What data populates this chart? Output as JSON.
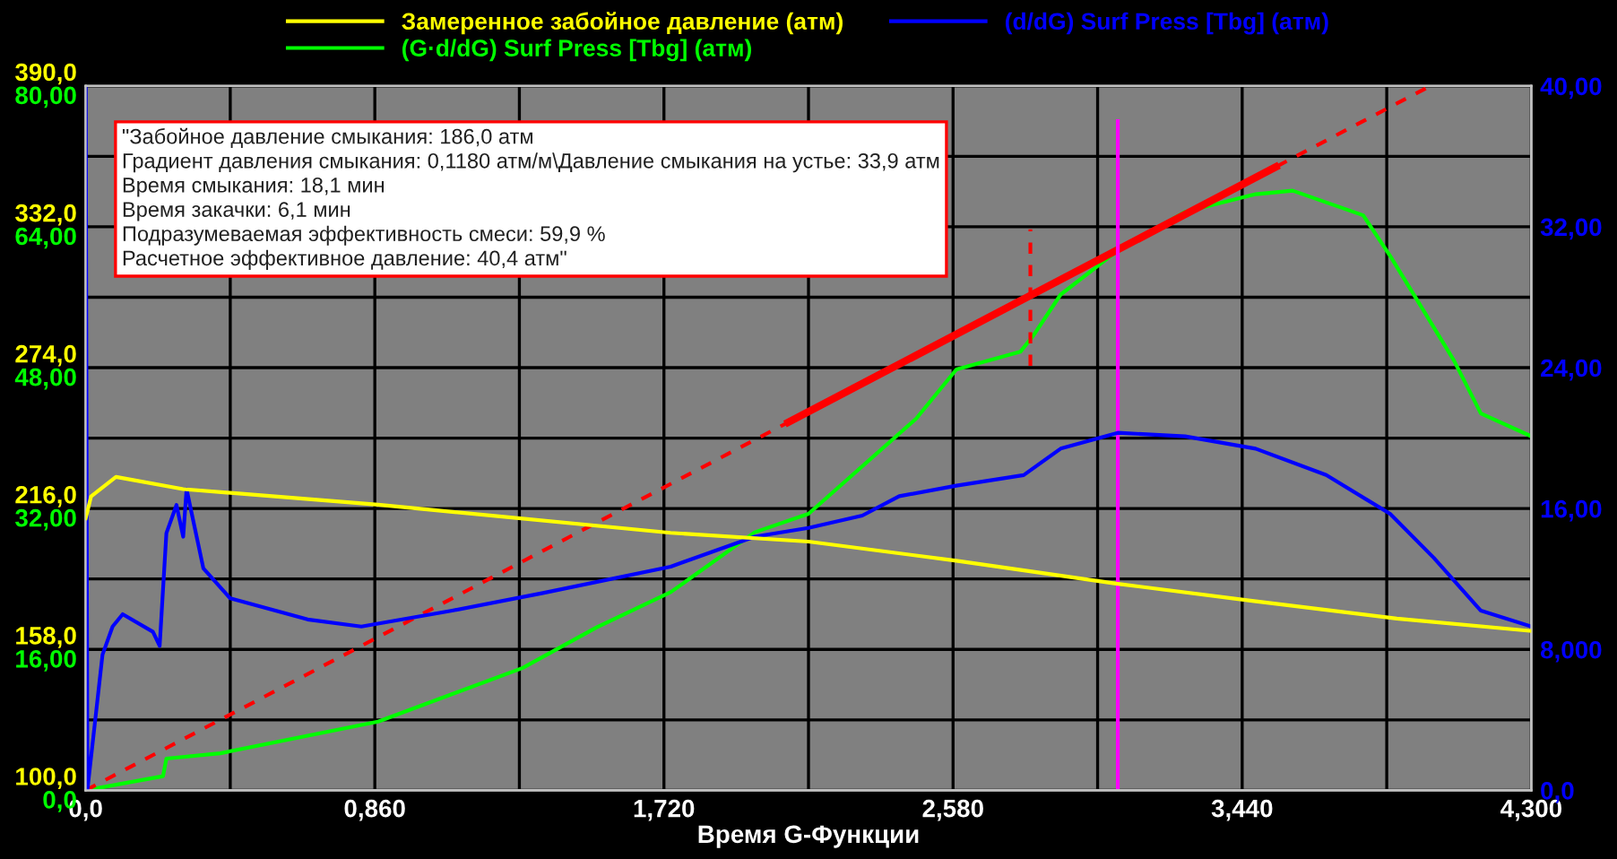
{
  "chart_data": {
    "type": "line",
    "xlabel": "Время G-Функции",
    "legend": "top",
    "grid": true,
    "marker": "none",
    "annotations": [
      "\"Забойное давление смыкания: 186,0 атм\nГрадиент давления смыкания: 0,1180 атм/м\\Давление смыкания на устье: 33,9 атм\nВремя смыкания: 18,1 мин\nВремя закачки: 6,1 мин\nПодразумеваемая эффективность смеси: 59,9 %\nРасчетное эффективное давление: 40,4 атм\""
    ],
    "xlim": [
      0,
      4.3
    ],
    "xticks": [
      {
        "value": 0,
        "label": "0,0"
      },
      {
        "value": 0.43,
        "label": null
      },
      {
        "value": 0.86,
        "label": "0,860"
      },
      {
        "value": 1.29,
        "label": null
      },
      {
        "value": 1.72,
        "label": "1,720"
      },
      {
        "value": 2.15,
        "label": null
      },
      {
        "value": 2.58,
        "label": "2,580"
      },
      {
        "value": 3.01,
        "label": null
      },
      {
        "value": 3.44,
        "label": "3,440"
      },
      {
        "value": 3.87,
        "label": null
      },
      {
        "value": 4.3,
        "label": "4,300"
      }
    ],
    "ylim": [
      0,
      80
    ],
    "yticks": [
      {
        "value": 0,
        "label": "0,0"
      },
      {
        "value": 8,
        "label": null
      },
      {
        "value": 16,
        "label": "16,00"
      },
      {
        "value": 24,
        "label": null
      },
      {
        "value": 32,
        "label": "32,00"
      },
      {
        "value": 40,
        "label": null
      },
      {
        "value": 48,
        "label": "48,00"
      },
      {
        "value": 56,
        "label": null
      },
      {
        "value": 64,
        "label": "64,00"
      },
      {
        "value": 72,
        "label": null
      },
      {
        "value": 80,
        "label": "80,00"
      }
    ],
    "y2lim": [
      0,
      40
    ],
    "y2ticks": [
      {
        "value": 0,
        "label": "0,0"
      },
      {
        "value": 8,
        "label": "8,000"
      },
      {
        "value": 16,
        "label": "16,00"
      },
      {
        "value": 24,
        "label": "24,00"
      },
      {
        "value": 32,
        "label": "32,00"
      },
      {
        "value": 40,
        "label": "40,00"
      }
    ],
    "y3lim": [
      100,
      390
    ],
    "y3ticks": [
      {
        "value": 100,
        "label": "100,0"
      },
      {
        "value": 158,
        "label": "158,0"
      },
      {
        "value": 216,
        "label": "216,0"
      },
      {
        "value": 274,
        "label": "274,0"
      },
      {
        "value": 332,
        "label": "332,0"
      },
      {
        "value": 390,
        "label": "390,0"
      }
    ],
    "series": [
      {
        "name": "Замеренное забойное давление (атм)",
        "color": "#ffff00",
        "axis": "y3",
        "line_style": "solid",
        "x": [
          0,
          0.016,
          0.09,
          0.29,
          0.87,
          1.74,
          2.15,
          2.59,
          3.07,
          3.47,
          3.9,
          4.3
        ],
        "values": [
          212,
          221,
          229,
          224,
          217.6,
          206,
          202.4,
          194.5,
          185,
          178,
          170.7,
          165.6
        ]
      },
      {
        "name": "(G·d/dG) Surf Press [Tbg] (атм)",
        "color": "#00ff00",
        "axis": "y",
        "line_style": "solid",
        "x": [
          0,
          0.23,
          0.24,
          0.4,
          0.87,
          1.3,
          1.52,
          1.74,
          1.99,
          2.15,
          2.47,
          2.59,
          2.78,
          2.82,
          2.9,
          3.07,
          3.27,
          3.48,
          3.59,
          3.8,
          3.88,
          3.96,
          4.07,
          4.15,
          4.3
        ],
        "values": [
          0,
          1.6,
          3.6,
          4.2,
          7.8,
          13.9,
          18.5,
          22.5,
          29.3,
          31.4,
          42.2,
          47.8,
          49.8,
          51.7,
          56.3,
          61.3,
          65.7,
          67.7,
          68.1,
          65.3,
          60.7,
          55.7,
          48.8,
          42.8,
          40.2
        ]
      },
      {
        "name": "(d/dG) Surf Press [Tbg] (атм)",
        "color": "#0000ff",
        "axis": "y2",
        "line_style": "solid",
        "x": [
          0,
          0.005,
          0.05,
          0.08,
          0.11,
          0.2,
          0.22,
          0.24,
          0.27,
          0.29,
          0.3,
          0.35,
          0.43,
          0.66,
          0.82,
          1.09,
          1.36,
          1.74,
          1.99,
          2.15,
          2.31,
          2.42,
          2.59,
          2.79,
          2.9,
          3.07,
          3.27,
          3.48,
          3.69,
          3.88,
          4.01,
          4.15,
          4.3
        ],
        "values": [
          40,
          0,
          7.7,
          9.3,
          10.0,
          9.0,
          8.2,
          14.6,
          16.2,
          14.4,
          17.1,
          12.6,
          10.9,
          9.7,
          9.3,
          10.2,
          11.2,
          12.7,
          14.4,
          14.9,
          15.6,
          16.7,
          17.3,
          17.9,
          19.4,
          20.3,
          20.1,
          19.4,
          17.9,
          15.7,
          13.2,
          10.2,
          9.3
        ]
      },
      {
        "color": "#ff0000",
        "axis": "y",
        "line_style": "dashed",
        "x": [
          0,
          4.0
        ],
        "values": [
          0,
          80
        ]
      },
      {
        "color": "#ff0000",
        "axis": "y",
        "line_style": "solid",
        "x": [
          2.09,
          3.54
        ],
        "values": [
          41.8,
          70.8
        ]
      },
      {
        "color": "#ff0000",
        "axis": "y",
        "line_style": "dashed",
        "x": [
          2.81,
          2.81
        ],
        "values": [
          48.2,
          63.7
        ]
      },
      {
        "color": "#ff00ff",
        "axis": "y",
        "line_style": "solid",
        "x": [
          3.07,
          3.07
        ],
        "values": [
          0,
          76.0
        ]
      }
    ]
  }
}
